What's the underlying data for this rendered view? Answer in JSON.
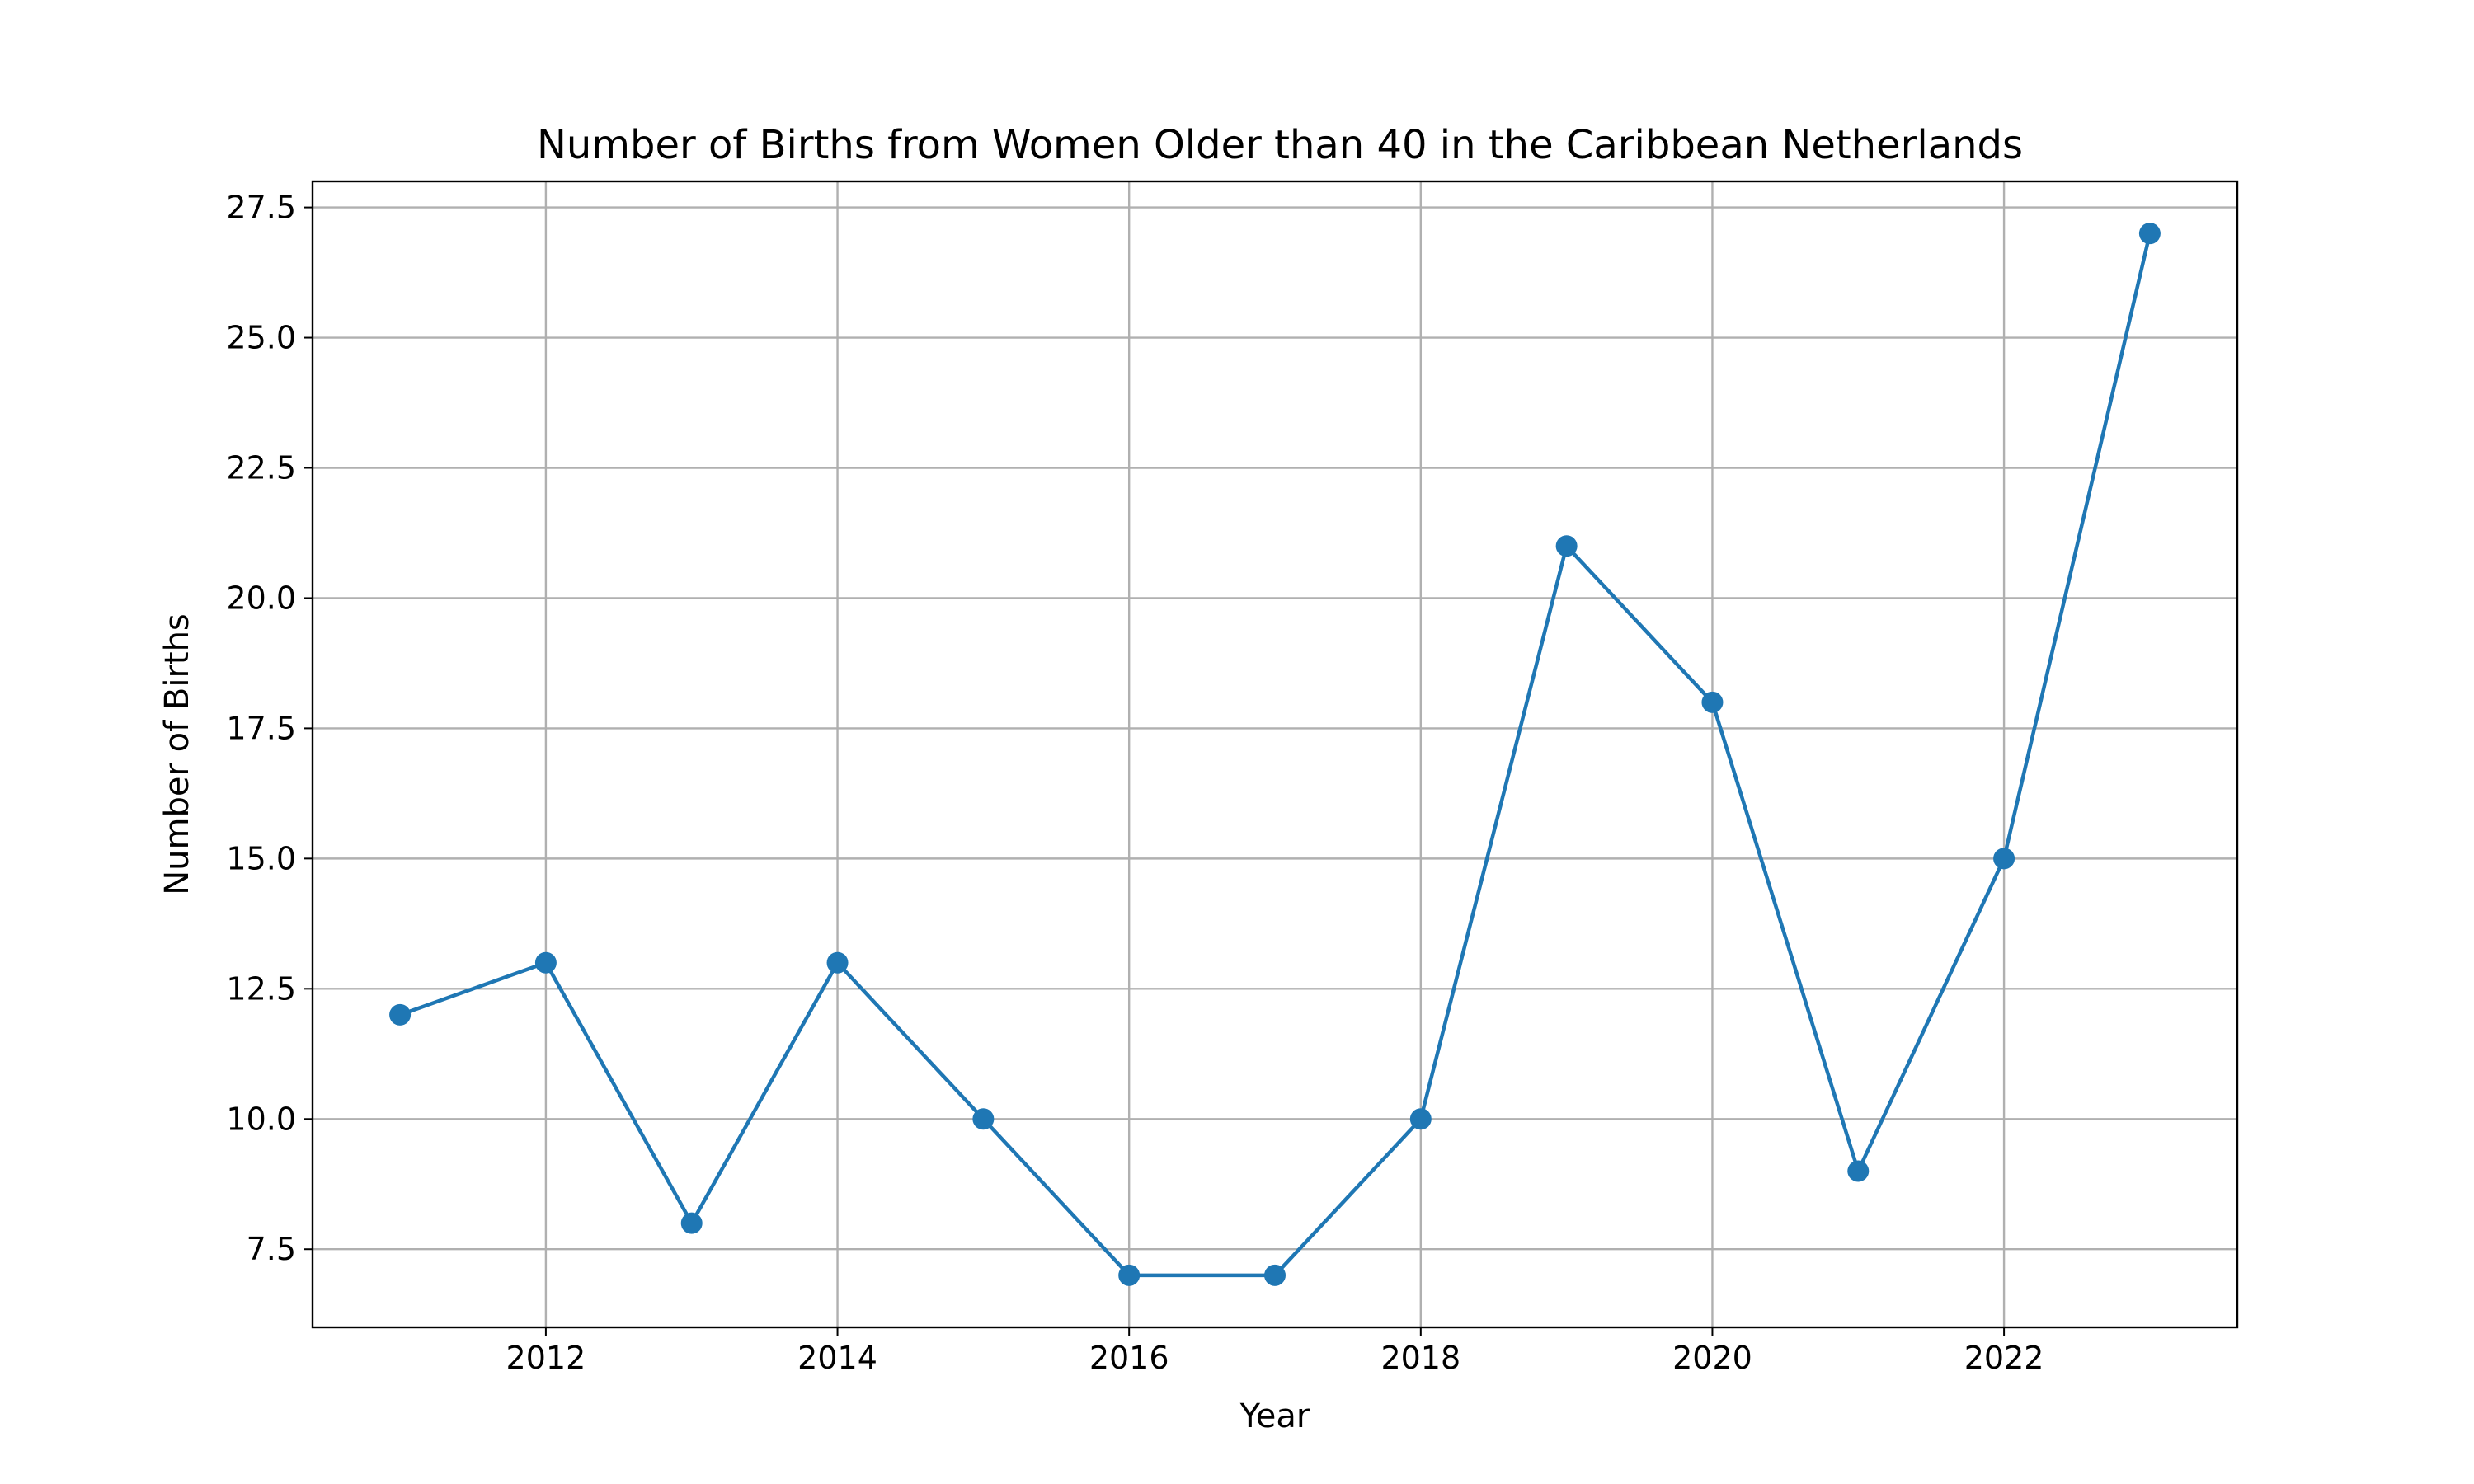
{
  "chart_data": {
    "type": "line",
    "title": "Number of Births from Women Older than 40 in the Caribbean Netherlands",
    "xlabel": "Year",
    "ylabel": "Number of Births",
    "x": [
      2011,
      2012,
      2013,
      2014,
      2015,
      2016,
      2017,
      2018,
      2019,
      2020,
      2021,
      2022,
      2023
    ],
    "series": [
      {
        "values": [
          12,
          13,
          8,
          13,
          10,
          7,
          7,
          10,
          21,
          18,
          9,
          15,
          27
        ],
        "color": "#1f77b4",
        "marker": "circle"
      }
    ],
    "xlim": [
      2010.4,
      2023.6
    ],
    "ylim": [
      6.0,
      28.0
    ],
    "xticks": [
      2012,
      2014,
      2016,
      2018,
      2020,
      2022
    ],
    "xtick_labels": [
      "2012",
      "2014",
      "2016",
      "2018",
      "2020",
      "2022"
    ],
    "yticks": [
      7.5,
      10.0,
      12.5,
      15.0,
      17.5,
      20.0,
      22.5,
      25.0,
      27.5
    ],
    "ytick_labels": [
      "7.5",
      "10.0",
      "12.5",
      "15.0",
      "17.5",
      "20.0",
      "22.5",
      "25.0",
      "27.5"
    ],
    "grid": true,
    "grid_color": "#b0b0b0"
  }
}
